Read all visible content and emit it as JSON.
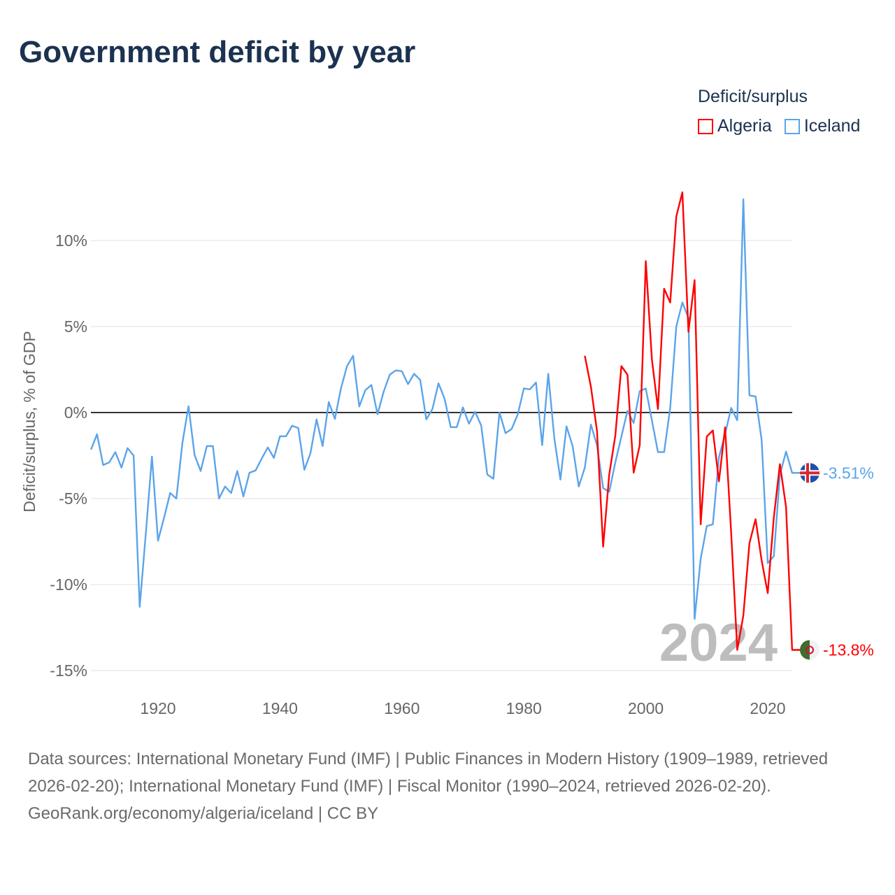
{
  "title": "Government deficit by year",
  "chart_data": {
    "type": "line",
    "title": "Government deficit by year",
    "ylabel": "Deficit/surplus, % of GDP",
    "xlabel": "",
    "ylim": [
      -15.5,
      13
    ],
    "xlim": [
      1909,
      2024
    ],
    "grid": true,
    "legend_title": "Deficit/surplus",
    "legend_position": "top-right",
    "year_watermark": "2024",
    "y_ticks": [
      {
        "v": 10,
        "label": "10%"
      },
      {
        "v": 5,
        "label": "5%"
      },
      {
        "v": 0,
        "label": "0%"
      },
      {
        "v": -5,
        "label": "-5%"
      },
      {
        "v": -10,
        "label": "-10%"
      },
      {
        "v": -15,
        "label": "-15%"
      }
    ],
    "x_ticks": [
      {
        "v": 1920,
        "label": "1920"
      },
      {
        "v": 1940,
        "label": "1940"
      },
      {
        "v": 1960,
        "label": "1960"
      },
      {
        "v": 1980,
        "label": "1980"
      },
      {
        "v": 2000,
        "label": "2000"
      },
      {
        "v": 2020,
        "label": "2020"
      }
    ],
    "series": [
      {
        "name": "Algeria",
        "color": "#ff0000",
        "start_year": 1990,
        "end_label": "-13.8%",
        "values": [
          3.3,
          1.5,
          -1.07,
          -7.8,
          -3.6,
          -1.34,
          2.7,
          2.2,
          -3.5,
          -1.9,
          8.8,
          3.1,
          0.2,
          7.2,
          6.4,
          11.4,
          12.8,
          4.7,
          7.7,
          -6.5,
          -1.4,
          -1.04,
          -4.0,
          -0.86,
          -7.0,
          -13.8,
          -11.8,
          -7.6,
          -6.2,
          -8.6,
          -10.5,
          -6.1,
          -3.0,
          -5.5,
          -13.8
        ]
      },
      {
        "name": "Iceland",
        "color": "#5ba4ea",
        "start_year": 1909,
        "end_label": "-3.51%",
        "values": [
          -2.15,
          -1.26,
          -3.05,
          -2.9,
          -2.3,
          -3.2,
          -2.07,
          -2.5,
          -11.3,
          -7.0,
          -2.56,
          -7.45,
          -6.1,
          -4.68,
          -5.0,
          -1.76,
          0.37,
          -2.47,
          -3.4,
          -1.95,
          -1.95,
          -5.0,
          -4.3,
          -4.68,
          -3.4,
          -4.88,
          -3.5,
          -3.37,
          -2.68,
          -2.03,
          -2.64,
          -1.38,
          -1.38,
          -0.77,
          -0.9,
          -3.33,
          -2.36,
          -0.4,
          -1.95,
          0.61,
          -0.37,
          1.4,
          2.7,
          3.3,
          0.35,
          1.3,
          1.6,
          -0.1,
          1.2,
          2.2,
          2.45,
          2.4,
          1.65,
          2.25,
          1.9,
          -0.4,
          0.2,
          1.7,
          0.8,
          -0.85,
          -0.85,
          0.3,
          -0.65,
          0.05,
          -0.75,
          -3.6,
          -3.85,
          0.0,
          -1.2,
          -0.95,
          -0.1,
          1.4,
          1.35,
          1.75,
          -1.9,
          2.25,
          -1.5,
          -3.9,
          -0.8,
          -1.96,
          -4.3,
          -3.2,
          -0.7,
          -1.9,
          -4.4,
          -4.6,
          -2.9,
          -1.4,
          0.1,
          -0.6,
          1.25,
          1.4,
          -0.45,
          -2.3,
          -2.3,
          0.27,
          5.0,
          6.4,
          5.5,
          -12.0,
          -8.5,
          -6.6,
          -6.5,
          -2.6,
          -1.25,
          0.27,
          -0.45,
          12.4,
          1.0,
          0.93,
          -1.6,
          -8.75,
          -8.35,
          -3.6,
          -2.27,
          -3.51
        ]
      }
    ]
  },
  "footer": {
    "sources": "Data sources: International Monetary Fund (IMF) | Public Finances in Modern History (1909–1989, retrieved 2026-02-20); International Monetary Fund (IMF) | Fiscal Monitor (1990–2024, retrieved 2026-02-20).",
    "credit": "GeoRank.org/economy/algeria/iceland | CC BY"
  }
}
